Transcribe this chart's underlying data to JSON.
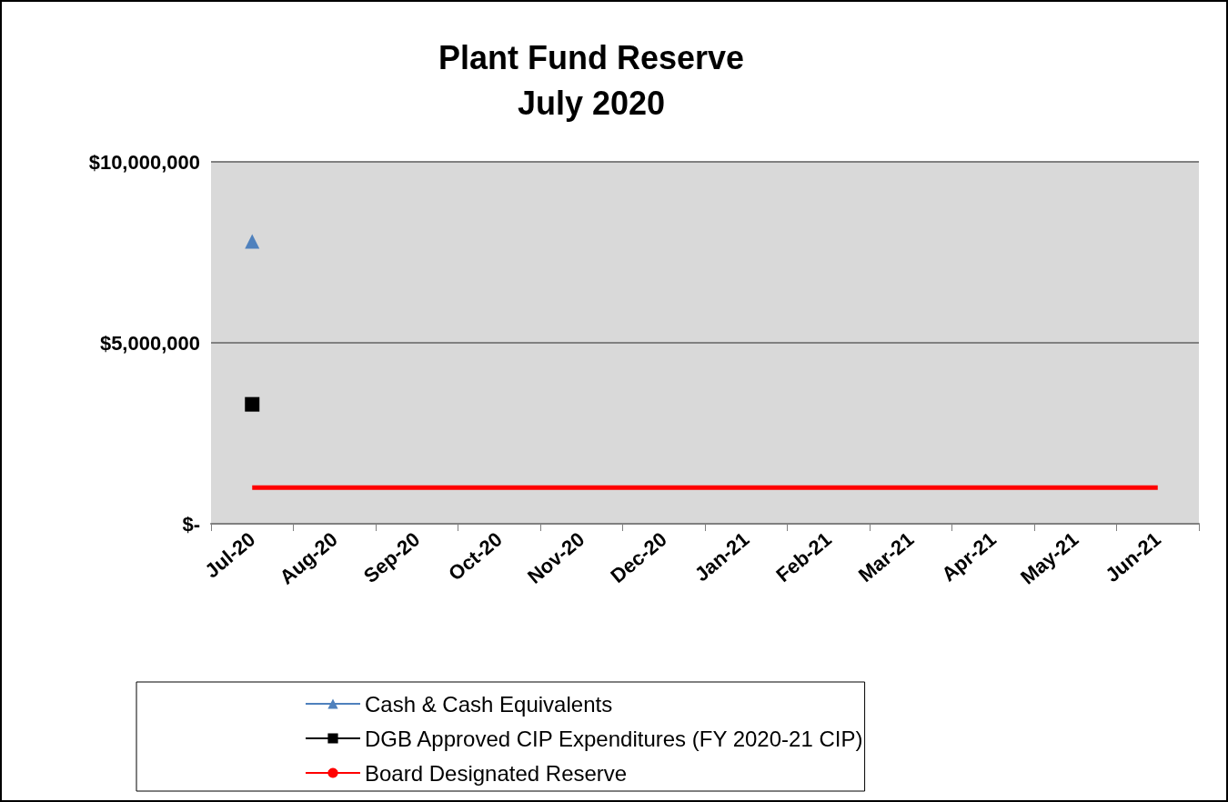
{
  "chart_data": {
    "type": "line",
    "title": "Plant Fund Reserve",
    "subtitle": "July 2020",
    "categories": [
      "Jul-20",
      "Aug-20",
      "Sep-20",
      "Oct-20",
      "Nov-20",
      "Dec-20",
      "Jan-21",
      "Feb-21",
      "Mar-21",
      "Apr-21",
      "May-21",
      "Jun-21"
    ],
    "series": [
      {
        "name": "Cash & Cash Equivalents",
        "color": "#4f81bd",
        "marker": "triangle",
        "values": [
          7800000,
          null,
          null,
          null,
          null,
          null,
          null,
          null,
          null,
          null,
          null,
          null
        ]
      },
      {
        "name": "DGB Approved CIP Expenditures (FY 2020-21 CIP)",
        "color": "#000000",
        "marker": "square",
        "values": [
          3300000,
          null,
          null,
          null,
          null,
          null,
          null,
          null,
          null,
          null,
          null,
          null
        ]
      },
      {
        "name": "Board Designated Reserve",
        "color": "#ff0000",
        "marker": "none",
        "values": [
          1000000,
          1000000,
          1000000,
          1000000,
          1000000,
          1000000,
          1000000,
          1000000,
          1000000,
          1000000,
          1000000,
          1000000
        ]
      }
    ],
    "ylim": [
      0,
      10000000
    ],
    "yticks": [
      {
        "value": 0,
        "label": "$-"
      },
      {
        "value": 5000000,
        "label": "$5,000,000"
      },
      {
        "value": 10000000,
        "label": "$10,000,000"
      }
    ],
    "grid": "y",
    "legend": "bottom"
  }
}
